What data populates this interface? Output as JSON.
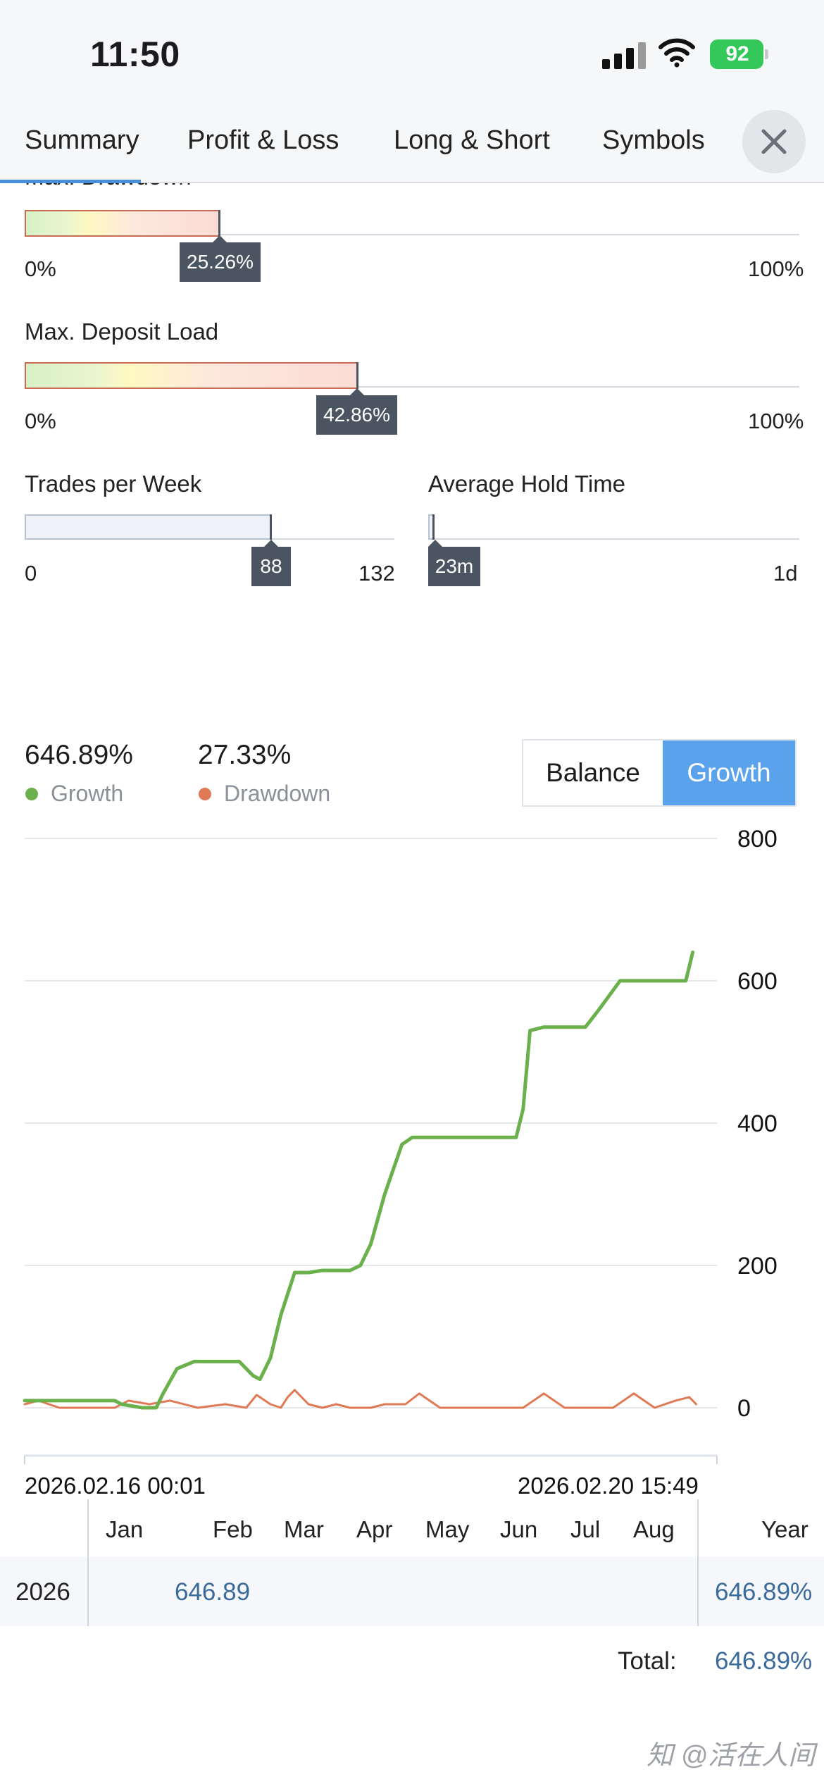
{
  "status_bar": {
    "time": "11:50",
    "battery": "92"
  },
  "tabs": {
    "items": [
      "Summary",
      "Profit & Loss",
      "Long & Short",
      "Symbols"
    ],
    "active": "Summary"
  },
  "meters": {
    "max_drawdown": {
      "label": "Max. Drawdown",
      "value": 25.26,
      "value_text": "25.26%",
      "min_text": "0%",
      "max_text": "100%"
    },
    "max_deposit_load": {
      "label": "Max. Deposit Load",
      "value": 42.86,
      "value_text": "42.86%",
      "min_text": "0%",
      "max_text": "100%"
    },
    "trades_per_week": {
      "label": "Trades per Week",
      "value": 88,
      "value_text": "88",
      "min_text": "0",
      "max_text": "132"
    },
    "avg_hold_time": {
      "label": "Average Hold Time",
      "value_text": "23m",
      "min_text": "",
      "max_text": "1d"
    }
  },
  "summary": {
    "growth_value": "646.89%",
    "growth_label": "Growth",
    "drawdown_value": "27.33%",
    "drawdown_label": "Drawdown"
  },
  "toggle": {
    "options": [
      "Balance",
      "Growth"
    ],
    "active": "Growth"
  },
  "colors": {
    "growth": "#6ab04c",
    "drawdown": "#e07a56",
    "accent": "#5aa2ec",
    "tooltip": "#4a5561"
  },
  "chart_data": {
    "type": "line",
    "ylim": [
      0,
      800
    ],
    "yticks": [
      0,
      200,
      400,
      600,
      800
    ],
    "x_start_label": "2026.02.16 00:01",
    "x_end_label": "2026.02.20 15:49",
    "series": [
      {
        "name": "Growth",
        "points": [
          [
            0.0,
            10
          ],
          [
            0.13,
            10
          ],
          [
            0.14,
            5
          ],
          [
            0.17,
            0
          ],
          [
            0.19,
            0
          ],
          [
            0.2,
            20
          ],
          [
            0.22,
            55
          ],
          [
            0.245,
            65
          ],
          [
            0.31,
            65
          ],
          [
            0.33,
            45
          ],
          [
            0.34,
            40
          ],
          [
            0.355,
            70
          ],
          [
            0.37,
            130
          ],
          [
            0.39,
            190
          ],
          [
            0.41,
            190
          ],
          [
            0.43,
            193
          ],
          [
            0.46,
            193
          ],
          [
            0.47,
            193
          ],
          [
            0.485,
            200
          ],
          [
            0.5,
            230
          ],
          [
            0.52,
            300
          ],
          [
            0.545,
            370
          ],
          [
            0.56,
            380
          ],
          [
            0.59,
            380
          ],
          [
            0.62,
            380
          ],
          [
            0.71,
            380
          ],
          [
            0.72,
            420
          ],
          [
            0.73,
            530
          ],
          [
            0.75,
            535
          ],
          [
            0.79,
            535
          ],
          [
            0.81,
            535
          ],
          [
            0.83,
            560
          ],
          [
            0.86,
            600
          ],
          [
            0.89,
            600
          ],
          [
            0.935,
            600
          ],
          [
            0.955,
            600
          ],
          [
            0.965,
            640
          ]
        ]
      },
      {
        "name": "Drawdown",
        "points": [
          [
            0.0,
            5
          ],
          [
            0.02,
            10
          ],
          [
            0.05,
            0
          ],
          [
            0.13,
            0
          ],
          [
            0.15,
            10
          ],
          [
            0.18,
            5
          ],
          [
            0.21,
            10
          ],
          [
            0.25,
            0
          ],
          [
            0.29,
            5
          ],
          [
            0.32,
            0
          ],
          [
            0.335,
            18
          ],
          [
            0.355,
            5
          ],
          [
            0.37,
            0
          ],
          [
            0.38,
            15
          ],
          [
            0.39,
            25
          ],
          [
            0.41,
            5
          ],
          [
            0.43,
            0
          ],
          [
            0.45,
            5
          ],
          [
            0.47,
            0
          ],
          [
            0.5,
            0
          ],
          [
            0.52,
            5
          ],
          [
            0.55,
            5
          ],
          [
            0.57,
            20
          ],
          [
            0.6,
            0
          ],
          [
            0.65,
            0
          ],
          [
            0.7,
            0
          ],
          [
            0.72,
            0
          ],
          [
            0.75,
            20
          ],
          [
            0.78,
            0
          ],
          [
            0.82,
            0
          ],
          [
            0.85,
            0
          ],
          [
            0.88,
            20
          ],
          [
            0.91,
            0
          ],
          [
            0.94,
            10
          ],
          [
            0.96,
            15
          ],
          [
            0.97,
            5
          ]
        ]
      }
    ]
  },
  "table": {
    "months": [
      "Jan",
      "Feb",
      "Mar",
      "Apr",
      "May",
      "Jun",
      "Jul",
      "Aug"
    ],
    "year_header": "Year",
    "row_year": "2026",
    "row_value": "646.89",
    "row_total": "646.89%",
    "total_label": "Total:",
    "total_value": "646.89%"
  },
  "watermark": "知 @活在人间"
}
